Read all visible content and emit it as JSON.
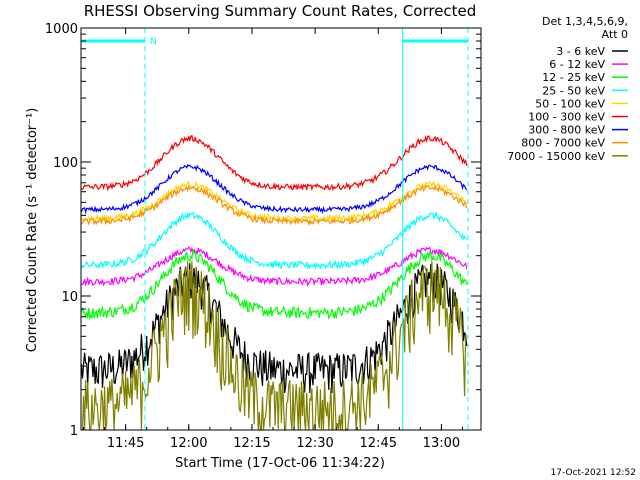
{
  "chart_data": {
    "type": "line",
    "title": "RHESSI Observing Summary Count Rates, Corrected",
    "xlabel": "Start Time (17-Oct-06 11:34:22)",
    "ylabel": "Corrected Count Rate (s⁻¹ detector⁻¹)",
    "y_scale": "log",
    "ylim": [
      1,
      1000
    ],
    "xlim_minutes": [
      0,
      95
    ],
    "x_ticks": [
      {
        "label": "11:45",
        "minute": 10.6
      },
      {
        "label": "12:00",
        "minute": 25.6
      },
      {
        "label": "12:15",
        "minute": 40.6
      },
      {
        "label": "12:30",
        "minute": 55.6
      },
      {
        "label": "12:45",
        "minute": 70.6
      },
      {
        "label": "13:00",
        "minute": 85.6
      }
    ],
    "y_ticks": [
      {
        "label": "1",
        "value": 1
      },
      {
        "label": "10",
        "value": 10
      },
      {
        "label": "100",
        "value": 100
      },
      {
        "label": "1000",
        "value": 1000
      }
    ],
    "legend_header": [
      "Det 1,3,4,5,6,9,",
      "Att 0"
    ],
    "legend_position": "right",
    "footer_timestamp": "17-Oct-2021 12:52",
    "night_marker_label": "N",
    "day_intervals_minutes": [
      [
        0,
        15.2
      ],
      [
        76.4,
        91.9
      ]
    ],
    "series": [
      {
        "name": "3 - 6 keV",
        "color": "#000000",
        "min": 2.8,
        "max": 13.5,
        "noise": 0.35
      },
      {
        "name": "6 - 12 keV",
        "color": "#ff00ff",
        "min": 12.8,
        "max": 22,
        "noise": 0.06
      },
      {
        "name": "12 - 25 keV",
        "color": "#00ff00",
        "min": 7.5,
        "max": 20,
        "noise": 0.1
      },
      {
        "name": "25 - 50 keV",
        "color": "#00ffff",
        "min": 17,
        "max": 40,
        "noise": 0.06
      },
      {
        "name": "50 - 100 keV",
        "color": "#ffd700",
        "min": 38,
        "max": 68,
        "noise": 0.05
      },
      {
        "name": "100 - 300 keV",
        "color": "#ff0000",
        "min": 65,
        "max": 150,
        "noise": 0.05
      },
      {
        "name": "300 - 800 keV",
        "color": "#0000ff",
        "min": 44,
        "max": 92,
        "noise": 0.04
      },
      {
        "name": "800 - 7000 keV",
        "color": "#ff8c00",
        "min": 36,
        "max": 64,
        "noise": 0.05
      },
      {
        "name": "7000 - 15000 keV",
        "color": "#808000",
        "min": 1.5,
        "max": 12,
        "noise": 0.6
      }
    ]
  }
}
